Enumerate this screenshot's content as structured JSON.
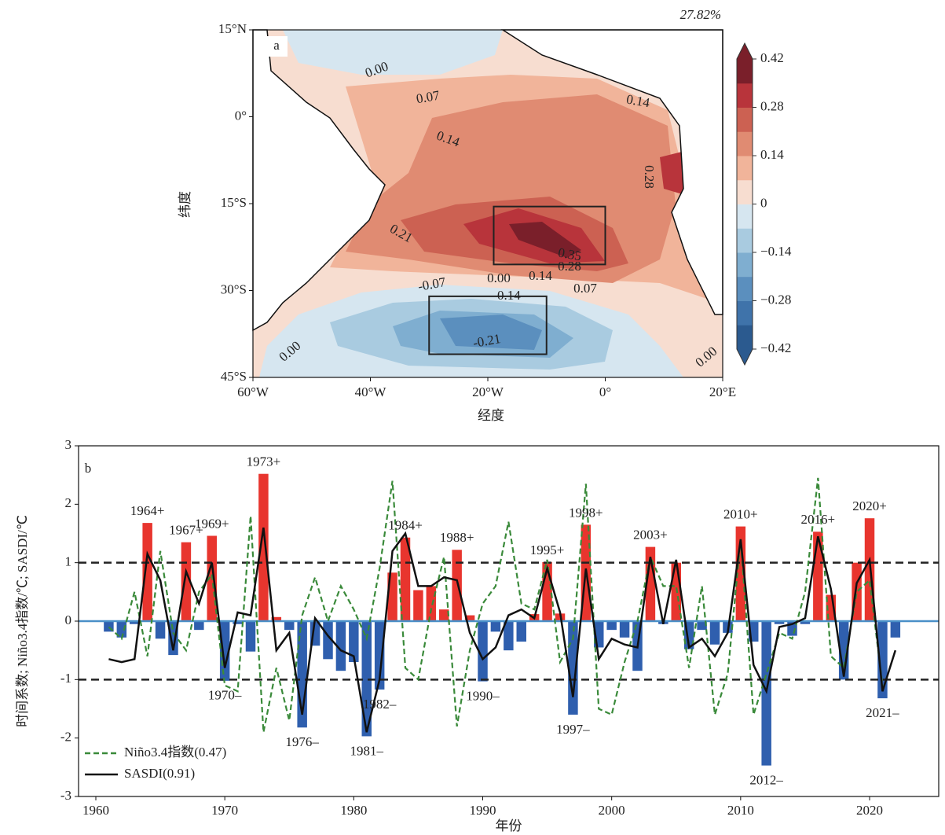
{
  "chart_data": [
    {
      "type": "contour-map",
      "panel_label": "a",
      "title": "27.82%",
      "xlabel": "经度",
      "ylabel": "纬度",
      "xlim": [
        -60,
        20
      ],
      "ylim": [
        -45,
        15
      ],
      "xticks": [
        {
          "value": -60,
          "label": "60°W"
        },
        {
          "value": -40,
          "label": "40°W"
        },
        {
          "value": -20,
          "label": "20°W"
        },
        {
          "value": 0,
          "label": "0°"
        },
        {
          "value": 20,
          "label": "20°E"
        }
      ],
      "yticks": [
        {
          "value": 15,
          "label": "15°N"
        },
        {
          "value": 0,
          "label": "0°"
        },
        {
          "value": -15,
          "label": "15°S"
        },
        {
          "value": -30,
          "label": "30°S"
        },
        {
          "value": -45,
          "label": "45°S"
        }
      ],
      "clim": [
        -0.42,
        0.42
      ],
      "cticks": [
        {
          "value": 0.42,
          "label": "0.42"
        },
        {
          "value": 0.28,
          "label": "0.28"
        },
        {
          "value": 0.14,
          "label": "0.14"
        },
        0,
        {
          "value": -0.14,
          "label": "−0.14"
        },
        {
          "value": -0.28,
          "label": "−0.28"
        },
        {
          "value": -0.42,
          "label": "−0.42"
        }
      ],
      "colormap": [
        "#2b5a8f",
        "#3f73aa",
        "#5b8fbe",
        "#7faed0",
        "#a9cbe0",
        "#d6e6f0",
        "#f7ddd0",
        "#f1b49a",
        "#e08b72",
        "#cc6152",
        "#b8343b",
        "#7a1f2a"
      ],
      "contour_labels": [
        {
          "value": 0,
          "label": "0.00"
        },
        {
          "value": 0.07,
          "label": "0.07"
        },
        {
          "value": 0.14,
          "label": "0.14"
        },
        {
          "value": 0.14,
          "label": "0.14"
        },
        {
          "value": 0.28,
          "label": "0.28"
        },
        {
          "value": 0.21,
          "label": "0.21"
        },
        {
          "value": 0.35,
          "label": "0.35"
        },
        {
          "value": 0.28,
          "label": "0.28"
        },
        {
          "value": -0.07,
          "label": "-0.07"
        },
        {
          "value": 0,
          "label": "0.00"
        },
        {
          "value": 0.14,
          "label": "0.14"
        },
        {
          "value": 0.07,
          "label": "0.07"
        },
        {
          "value": -0.14,
          "label": "-0.14"
        },
        {
          "value": -0.21,
          "label": "-0.21"
        },
        {
          "value": 0,
          "label": "0.00"
        },
        {
          "value": 0,
          "label": "0.00"
        }
      ],
      "boxes": [
        {
          "lon": [
            -19,
            0
          ],
          "lat": [
            -25.5,
            -15.5
          ]
        },
        {
          "lon": [
            -30,
            -10
          ],
          "lat": [
            -41,
            -31
          ]
        }
      ]
    },
    {
      "type": "bar-line",
      "panel_label": "b",
      "xlabel": "年份",
      "ylabel": "时间系数; Niño3.4指数/℃; SASDI/℃",
      "xlim": [
        1958.66,
        2025.36
      ],
      "ylim": [
        -3,
        3
      ],
      "xticks": [
        1960,
        1970,
        1980,
        1990,
        2000,
        2010,
        2020
      ],
      "yticks": [
        -3,
        -2,
        -1,
        0,
        1,
        2,
        3
      ],
      "x": [
        1961,
        1962,
        1963,
        1964,
        1965,
        1966,
        1967,
        1968,
        1969,
        1970,
        1971,
        1972,
        1973,
        1974,
        1975,
        1976,
        1977,
        1978,
        1979,
        1980,
        1981,
        1982,
        1983,
        1984,
        1985,
        1986,
        1987,
        1988,
        1989,
        1990,
        1991,
        1992,
        1993,
        1994,
        1995,
        1996,
        1997,
        1998,
        1999,
        2000,
        2001,
        2002,
        2003,
        2004,
        2005,
        2006,
        2007,
        2008,
        2009,
        2010,
        2011,
        2012,
        2013,
        2014,
        2015,
        2016,
        2017,
        2018,
        2019,
        2020,
        2021,
        2022
      ],
      "bars": {
        "pos_color": "#e8352e",
        "neg_color": "#2f5fae",
        "values": [
          -0.18,
          -0.28,
          -0.05,
          1.68,
          -0.3,
          -0.58,
          1.35,
          -0.15,
          1.46,
          -1.02,
          -0.05,
          -0.52,
          2.52,
          0.07,
          -0.15,
          -1.82,
          -0.42,
          -0.65,
          -0.85,
          -0.7,
          -1.97,
          -1.17,
          0.83,
          1.43,
          0.53,
          0.6,
          0.2,
          1.22,
          0.1,
          -1.03,
          -0.18,
          -0.5,
          -0.35,
          0.12,
          1.01,
          0.13,
          -1.6,
          1.65,
          -0.45,
          -0.15,
          -0.28,
          -0.85,
          1.27,
          -0.05,
          1.0,
          -0.48,
          -0.15,
          -0.4,
          -0.2,
          1.62,
          -0.35,
          -2.47,
          -0.05,
          -0.25,
          -0.05,
          1.53,
          0.45,
          -1.0,
          1.0,
          1.76,
          -1.32,
          -0.28
        ]
      },
      "series": [
        {
          "name": "Niño3.4指数(0.47)",
          "color": "#3a8a3a",
          "style": "dashed",
          "values": [
            -0.1,
            -0.3,
            0.5,
            -0.6,
            1.2,
            -0.2,
            -0.5,
            0.5,
            0.8,
            -1.1,
            -1.2,
            1.8,
            -1.9,
            -0.8,
            -1.7,
            0.1,
            0.75,
            0.0,
            0.6,
            0.2,
            -0.3,
            0.9,
            2.4,
            -0.8,
            -1.0,
            0.2,
            1.1,
            -1.8,
            -0.5,
            0.3,
            0.6,
            1.7,
            0.3,
            0.2,
            1.05,
            -0.7,
            -0.3,
            2.35,
            -1.5,
            -1.6,
            -0.7,
            0.0,
            1.1,
            0.6,
            0.6,
            -0.8,
            0.6,
            -1.6,
            -0.9,
            1.4,
            -1.6,
            -0.9,
            -0.2,
            -0.3,
            0.5,
            2.45,
            -0.6,
            -0.8,
            0.5,
            0.7,
            -1.1,
            null
          ]
        },
        {
          "name": "SASDI(0.91)",
          "color": "#111111",
          "style": "solid",
          "values": [
            -0.65,
            -0.7,
            -0.65,
            1.15,
            0.7,
            -0.5,
            0.85,
            0.3,
            1.0,
            -0.8,
            0.15,
            0.1,
            1.6,
            -0.5,
            -0.2,
            -1.6,
            0.05,
            -0.25,
            -0.5,
            -0.6,
            -1.9,
            -1.0,
            1.2,
            1.5,
            0.6,
            0.6,
            0.75,
            0.7,
            -0.2,
            -0.65,
            -0.45,
            0.1,
            0.2,
            0.05,
            0.9,
            0.15,
            -1.3,
            0.9,
            -0.65,
            -0.3,
            -0.4,
            -0.45,
            1.1,
            -0.05,
            1.05,
            -0.45,
            -0.3,
            -0.6,
            -0.2,
            1.4,
            -0.75,
            -1.2,
            -0.1,
            -0.05,
            0.05,
            1.45,
            0.55,
            -0.95,
            0.65,
            1.05,
            -1.2,
            -0.5
          ]
        }
      ],
      "hlines": [
        {
          "value": 1,
          "color": "#222222",
          "style": "dashed"
        },
        {
          "value": -1,
          "color": "#222222",
          "style": "dashed"
        },
        {
          "value": 0,
          "color": "#4a90c8",
          "style": "solid"
        }
      ],
      "legend": "lower left",
      "annotations": [
        {
          "text": "1964+",
          "x": 1964
        },
        {
          "text": "1967+",
          "x": 1967
        },
        {
          "text": "1969+",
          "x": 1969
        },
        {
          "text": "1973+",
          "x": 1973
        },
        {
          "text": "1984+",
          "x": 1984
        },
        {
          "text": "1988+",
          "x": 1988
        },
        {
          "text": "1995+",
          "x": 1995
        },
        {
          "text": "1998+",
          "x": 1998
        },
        {
          "text": "2003+",
          "x": 2003
        },
        {
          "text": "2010+",
          "x": 2010
        },
        {
          "text": "2016+",
          "x": 2016
        },
        {
          "text": "2020+",
          "x": 2020
        },
        {
          "text": "1970–",
          "x": 1970
        },
        {
          "text": "1976–",
          "x": 1976
        },
        {
          "text": "1981–",
          "x": 1981
        },
        {
          "text": "1982–",
          "x": 1982
        },
        {
          "text": "1990–",
          "x": 1990
        },
        {
          "text": "1997–",
          "x": 1997
        },
        {
          "text": "2012–",
          "x": 2012
        },
        {
          "text": "2021–",
          "x": 2021
        }
      ]
    }
  ]
}
